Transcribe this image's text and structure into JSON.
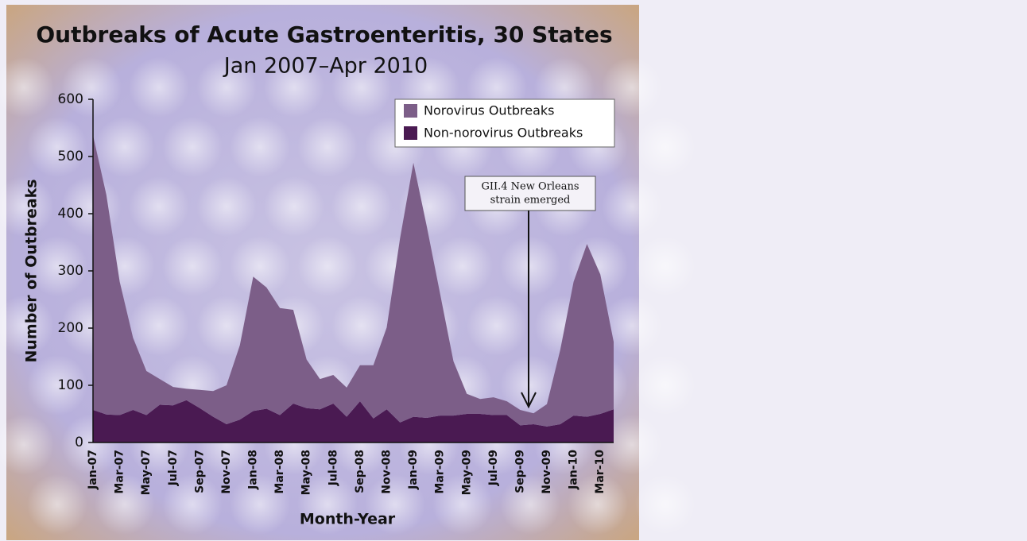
{
  "chart_data": {
    "type": "stacked-area",
    "title": "Outbreaks of Acute Gastroenteritis, 30 States",
    "subtitle": "Jan 2007–Apr 2010",
    "x_label": "Month-Year",
    "y_label": "Number of Outbreaks",
    "annotation": [
      "GII.4 New Orleans",
      "strain emerged"
    ],
    "categories": [
      "Jan-07",
      null,
      "Mar-07",
      null,
      "May-07",
      null,
      "Jul-07",
      null,
      "Sep-07",
      null,
      "Nov-07",
      null,
      "Jan-08",
      null,
      "Mar-08",
      null,
      "May-08",
      null,
      "Jul-08",
      null,
      "Sep-08",
      null,
      "Nov-08",
      null,
      "Jan-09",
      null,
      "Mar-09",
      null,
      "May-09",
      null,
      "Jul-09",
      null,
      "Sep-09",
      null,
      "Nov-09",
      null,
      "Jan-10",
      null,
      "Mar-10",
      null
    ],
    "series": [
      {
        "name": "Non-norovirus Outbreaks",
        "color": "#4a1a52",
        "values": [
          57,
          49,
          48,
          57,
          48,
          66,
          65,
          74,
          60,
          45,
          32,
          40,
          55,
          59,
          48,
          68,
          60,
          58,
          68,
          45,
          72,
          42,
          58,
          35,
          45,
          43,
          47,
          47,
          50,
          50,
          48,
          48,
          30,
          32,
          28,
          32,
          47,
          45,
          50,
          58
        ]
      },
      {
        "name": "Norovirus Outbreaks",
        "color": "#7c5e88",
        "values": [
          480,
          384,
          233,
          126,
          77,
          45,
          32,
          20,
          32,
          45,
          68,
          130,
          235,
          212,
          187,
          164,
          85,
          53,
          50,
          51,
          63,
          93,
          143,
          322,
          444,
          335,
          213,
          95,
          35,
          26,
          31,
          24,
          27,
          19,
          39,
          130,
          234,
          302,
          244,
          118
        ]
      }
    ],
    "ylim": [
      0,
      600
    ],
    "yticks": [
      0,
      100,
      200,
      300,
      400,
      500,
      600
    ],
    "stacked": true
  }
}
